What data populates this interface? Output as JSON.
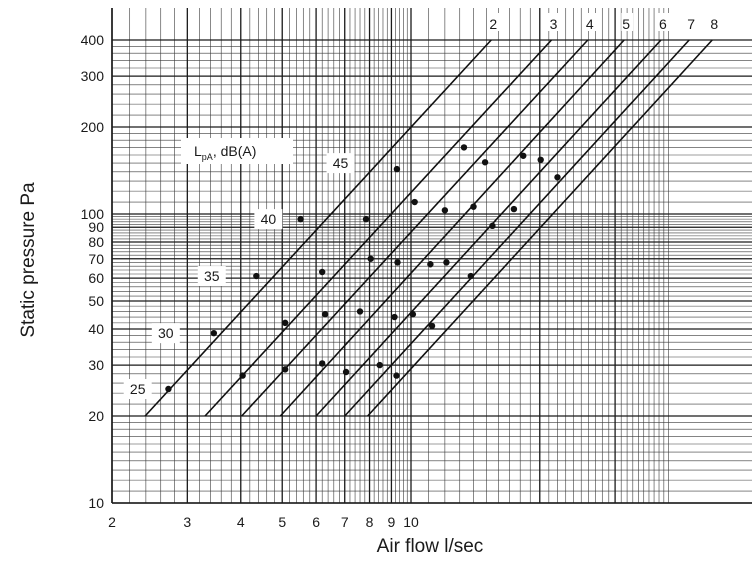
{
  "chart_data": {
    "type": "line",
    "x_scale": "log",
    "y_scale": "log",
    "xlabel": "Air flow l/sec",
    "ylabel": "Static pressure Pa",
    "xlim": [
      2,
      40
    ],
    "ylim": [
      10,
      400
    ],
    "x_ticks": [
      {
        "value": 2,
        "label": "2"
      },
      {
        "value": 3,
        "label": "3"
      },
      {
        "value": 4,
        "label": "4"
      },
      {
        "value": 5,
        "label": "5"
      },
      {
        "value": 6,
        "label": "6"
      },
      {
        "value": 7,
        "label": "7"
      },
      {
        "value": 8,
        "label": "8"
      },
      {
        "value": 9,
        "label": "9"
      },
      {
        "value": 10,
        "label": "10"
      }
    ],
    "y_ticks": [
      {
        "value": 10,
        "label": "10"
      },
      {
        "value": 20,
        "label": "20"
      },
      {
        "value": 30,
        "label": "30"
      },
      {
        "value": 40,
        "label": "40"
      },
      {
        "value": 50,
        "label": "50"
      },
      {
        "value": 60,
        "label": "60"
      },
      {
        "value": 70,
        "label": "70"
      },
      {
        "value": 80,
        "label": "80"
      },
      {
        "value": 90,
        "label": "90"
      },
      {
        "value": 100,
        "label": "100"
      },
      {
        "value": 200,
        "label": "200"
      },
      {
        "value": 300,
        "label": "300"
      },
      {
        "value": 400,
        "label": "400"
      }
    ],
    "grid": true,
    "series": [
      {
        "name": "2",
        "x": [
          2.39,
          15.4
        ],
        "y": [
          20,
          400
        ],
        "points": [
          [
            2.71,
            24.8
          ],
          [
            3.46,
            38.7
          ],
          [
            4.35,
            61
          ],
          [
            5.52,
            96
          ],
          [
            7.08,
            150
          ]
        ]
      },
      {
        "name": "3",
        "x": [
          3.3,
          21.3
        ],
        "y": [
          20,
          400
        ],
        "points": [
          [
            4.04,
            27.6
          ],
          [
            5.08,
            42
          ],
          [
            6.2,
            63
          ],
          [
            7.85,
            96
          ],
          [
            9.27,
            143
          ]
        ]
      },
      {
        "name": "4",
        "x": [
          4.02,
          25.9
        ],
        "y": [
          20,
          400
        ],
        "points": [
          [
            5.08,
            29
          ],
          [
            6.3,
            45
          ],
          [
            8.05,
            70
          ],
          [
            9.3,
            68
          ],
          [
            10.2,
            110
          ],
          [
            13.3,
            170
          ]
        ]
      },
      {
        "name": "5",
        "x": [
          4.95,
          31.5
        ],
        "y": [
          20,
          400
        ],
        "points": [
          [
            6.2,
            30.4
          ],
          [
            7.6,
            46
          ],
          [
            9.15,
            44
          ],
          [
            11.1,
            67
          ],
          [
            12.0,
            103
          ],
          [
            14.9,
            151
          ]
        ]
      },
      {
        "name": "6",
        "x": [
          6.0,
          38.4
        ],
        "y": [
          20,
          400
        ],
        "points": [
          [
            7.05,
            28.4
          ],
          [
            8.45,
            30
          ],
          [
            10.1,
            45
          ],
          [
            12.1,
            68
          ],
          [
            14.0,
            106
          ],
          [
            18.3,
            159
          ]
        ]
      },
      {
        "name": "7",
        "x": [
          7.0,
          44.7
        ],
        "y": [
          20,
          400
        ],
        "points": [
          [
            9.25,
            27.6
          ],
          [
            11.2,
            41
          ],
          [
            13.8,
            61
          ],
          [
            17.4,
            104
          ],
          [
            20.1,
            154
          ]
        ]
      },
      {
        "name": "8",
        "x": [
          7.92,
          50.6
        ],
        "y": [
          20,
          400
        ],
        "points": [
          [
            15.5,
            91
          ],
          [
            22.0,
            134
          ]
        ]
      }
    ],
    "legend": "L pA, dB(A)",
    "db_labels": [
      {
        "text": "25",
        "x": 2.45,
        "y": 24.8
      },
      {
        "text": "30",
        "x": 2.85,
        "y": 38.7
      },
      {
        "text": "35",
        "x": 3.65,
        "y": 61
      },
      {
        "text": "40",
        "x": 4.95,
        "y": 96
      },
      {
        "text": "45",
        "x": 7.3,
        "y": 150
      }
    ]
  }
}
